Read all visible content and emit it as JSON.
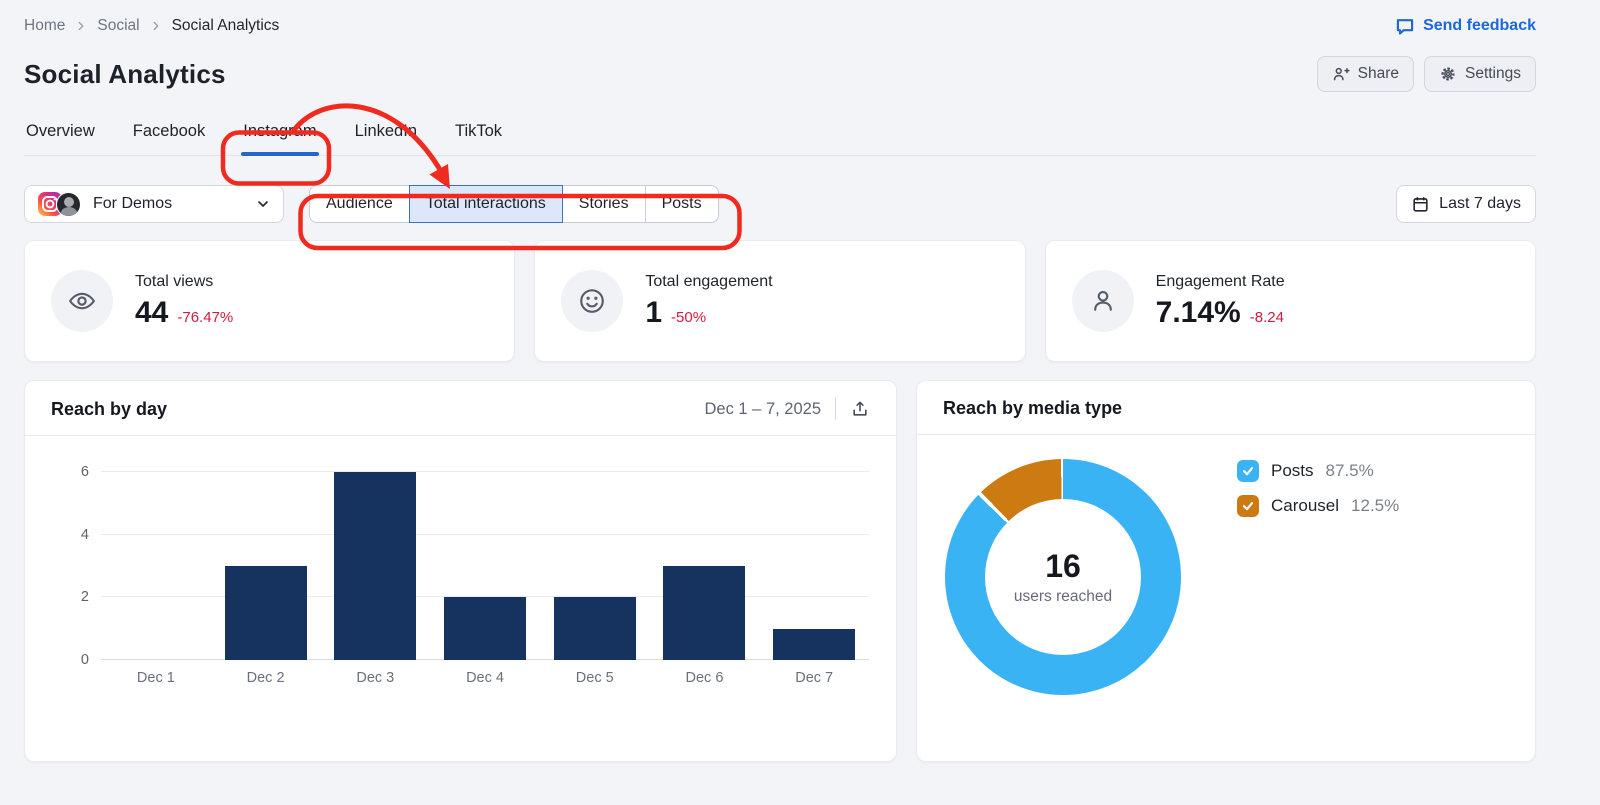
{
  "breadcrumb": {
    "items": [
      {
        "label": "Home"
      },
      {
        "label": "Social"
      },
      {
        "label": "Social Analytics"
      }
    ]
  },
  "feedback": {
    "label": "Send feedback"
  },
  "header": {
    "title": "Social Analytics",
    "share": "Share",
    "settings": "Settings"
  },
  "tabs": {
    "items": [
      {
        "label": "Overview",
        "active": false
      },
      {
        "label": "Facebook",
        "active": false
      },
      {
        "label": "Instagram",
        "active": true
      },
      {
        "label": "LinkedIn",
        "active": false
      },
      {
        "label": "TikTok",
        "active": false
      }
    ]
  },
  "account_selector": {
    "label": "For Demos",
    "icons": [
      "instagram-logo",
      "profile-avatar"
    ]
  },
  "subtabs": {
    "items": [
      {
        "label": "Audience",
        "selected": false
      },
      {
        "label": "Total interactions",
        "selected": true
      },
      {
        "label": "Stories",
        "selected": false
      },
      {
        "label": "Posts",
        "selected": false
      }
    ]
  },
  "date_filter": {
    "label": "Last 7 days",
    "icon": "calendar-icon"
  },
  "stats": {
    "cards": [
      {
        "icon": "eye-icon",
        "label": "Total views",
        "value": "44",
        "delta": "-76.47%"
      },
      {
        "icon": "smiley-icon",
        "label": "Total engagement",
        "value": "1",
        "delta": "-50%"
      },
      {
        "icon": "person-icon",
        "label": "Engagement Rate",
        "value": "7.14%",
        "delta": "-8.24"
      }
    ]
  },
  "reach_by_day": {
    "title": "Reach by day",
    "date_range": "Dec 1 – 7, 2025",
    "export_icon": "export-icon"
  },
  "reach_by_media": {
    "title": "Reach by media type",
    "center_value": "16",
    "center_label": "users reached",
    "legend": [
      {
        "label": "Posts",
        "value": "87.5%"
      },
      {
        "label": "Carousel",
        "value": "12.5%"
      }
    ]
  },
  "chart_data": [
    {
      "type": "bar",
      "title": "Reach by day",
      "categories": [
        "Dec 1",
        "Dec 2",
        "Dec 3",
        "Dec 4",
        "Dec 5",
        "Dec 6",
        "Dec 7"
      ],
      "values": [
        0,
        3,
        6,
        2,
        2,
        3,
        1
      ],
      "xlabel": "",
      "ylabel": "",
      "ylim": [
        0,
        6
      ],
      "yticks": [
        0,
        2,
        4,
        6
      ],
      "grid": true,
      "bar_color": "#16325f"
    },
    {
      "type": "pie",
      "donut": true,
      "title": "Reach by media type",
      "labels": [
        "Posts",
        "Carousel"
      ],
      "values": [
        87.5,
        12.5
      ],
      "colors": [
        "#3ab3f5",
        "#cc7b13"
      ],
      "center_value": "16",
      "center_label": "users reached",
      "legend_position": "right"
    }
  ],
  "colors": {
    "page_bg": "#f3f4f8",
    "link_blue": "#1c67d9",
    "tab_active_underline": "#2566cc",
    "negative_red": "#d31a3e",
    "bar_navy": "#16325f",
    "donut_blue": "#3ab3f5",
    "donut_orange": "#cc7b13",
    "annotation_red": "#f02a1e",
    "selected_segment_bg": "#dce8f9",
    "selected_segment_border": "#3b72c8"
  }
}
